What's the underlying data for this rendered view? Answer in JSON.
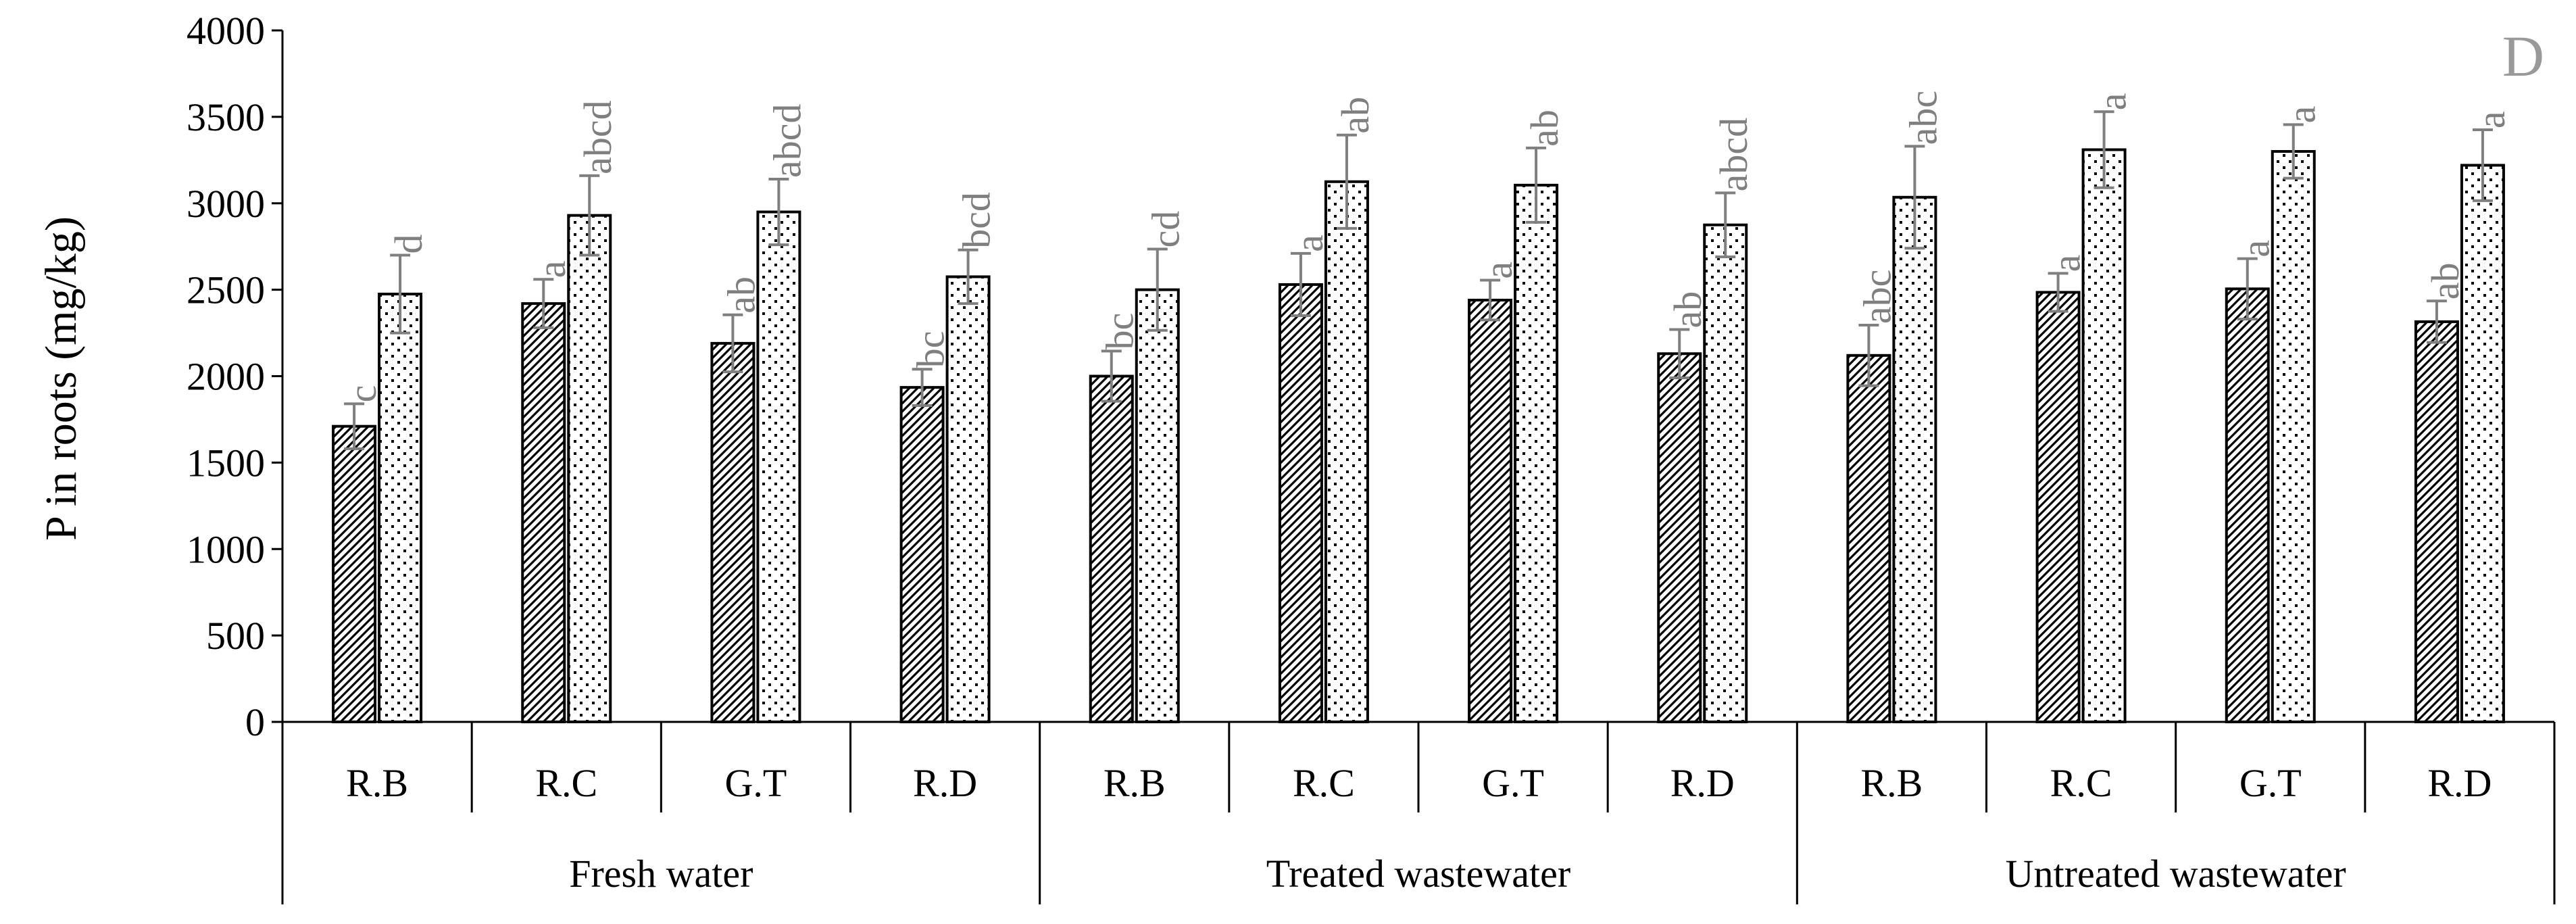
{
  "chart_data": {
    "type": "bar",
    "panel_label": "D",
    "ylabel": "P in roots (mg/kg)",
    "ylim": [
      0,
      4000
    ],
    "yticks": [
      "0",
      "500",
      "1000",
      "1500",
      "2000",
      "2500",
      "3000",
      "3500",
      "4000"
    ],
    "grid": false,
    "legend": "none",
    "groups": [
      "Fresh water",
      "Treated wastewater",
      "Untreated wastewater"
    ],
    "categories": [
      "R.B",
      "R.C",
      "G.T",
      "R.D",
      "R.B",
      "R.C",
      "G.T",
      "R.D",
      "R.B",
      "R.C",
      "G.T",
      "R.D"
    ],
    "category_group": [
      0,
      0,
      0,
      0,
      1,
      1,
      1,
      1,
      2,
      2,
      2,
      2
    ],
    "series": [
      {
        "pattern": "hatched",
        "values": [
          1710,
          2420,
          2190,
          1935,
          2000,
          2530,
          2440,
          2130,
          2120,
          2485,
          2505,
          2315
        ],
        "errors": [
          130,
          140,
          165,
          105,
          145,
          180,
          115,
          140,
          175,
          110,
          175,
          120
        ],
        "letters": [
          "c",
          "a",
          "ab",
          "bc",
          "bc",
          "a",
          "a",
          "ab",
          "abc",
          "a",
          "a",
          "ab"
        ]
      },
      {
        "pattern": "dotted",
        "values": [
          2475,
          2930,
          2950,
          2575,
          2500,
          3125,
          3105,
          2875,
          3035,
          3310,
          3300,
          3220
        ],
        "errors": [
          225,
          230,
          190,
          155,
          235,
          270,
          215,
          185,
          295,
          220,
          155,
          205
        ],
        "letters": [
          "d",
          "abcd",
          "abcd",
          "bcd",
          "cd",
          "ab",
          "ab",
          "abcd",
          "abc",
          "a",
          "a",
          "a"
        ]
      }
    ]
  }
}
